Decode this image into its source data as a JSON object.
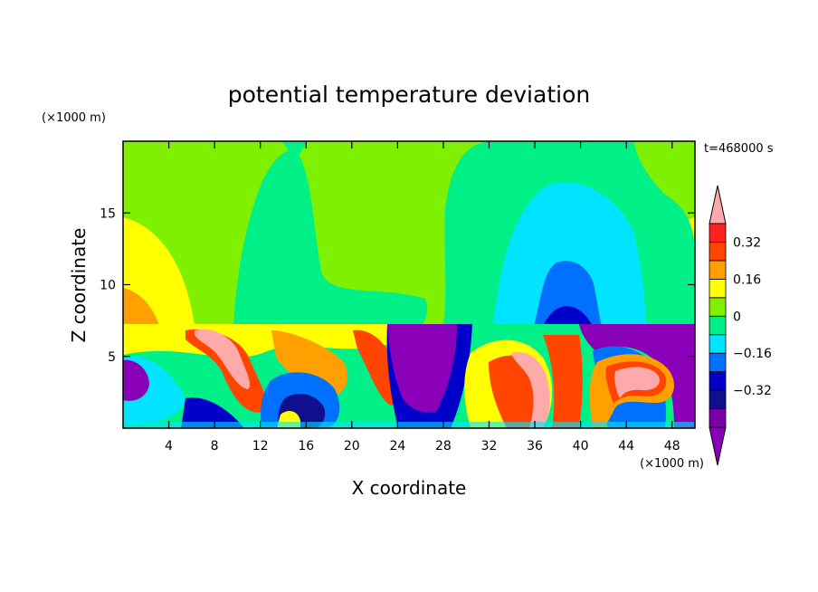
{
  "chart_data": {
    "type": "heatmap",
    "title": "potential temperature deviation",
    "xlabel": "X coordinate",
    "ylabel": "Z coordinate",
    "x_unit": "(×1000 m)",
    "z_unit": "(×1000 m)",
    "time_label": "t=468000 s",
    "xlim": [
      0,
      50
    ],
    "ylim": [
      0,
      20
    ],
    "x_ticks": [
      4,
      8,
      12,
      16,
      20,
      24,
      28,
      32,
      36,
      40,
      44,
      48
    ],
    "y_ticks": [
      5,
      10,
      15
    ],
    "colorbar": {
      "levels": [
        -0.48,
        -0.4,
        -0.32,
        -0.24,
        -0.16,
        -0.08,
        0,
        0.08,
        0.16,
        0.24,
        0.32,
        0.4
      ],
      "labels": [
        "0.32",
        "0.16",
        "0",
        "−0.16",
        "−0.32"
      ],
      "label_values": [
        0.32,
        0.16,
        0,
        -0.16,
        -0.32
      ],
      "colors": [
        "#8a00b8",
        "#7a00a8",
        "#10108e",
        "#0000c8",
        "#0070ff",
        "#00e4ff",
        "#00f088",
        "#7ff000",
        "#ffff00",
        "#ffa000",
        "#ff4500",
        "#ff2020",
        "#ffaaaa"
      ]
    }
  }
}
